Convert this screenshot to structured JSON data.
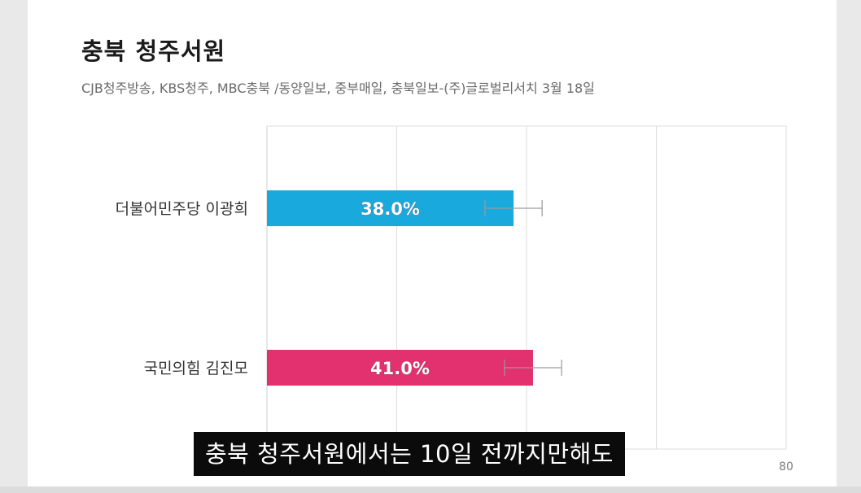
{
  "header": {
    "title": "충북 청주서원",
    "subtitle": "CJB청주방송, KBS청주, MBC충북 /동양일보, 중부매일, 충북일보-(주)글로벌리서치 3월 18일"
  },
  "chart_data": {
    "type": "bar",
    "orientation": "horizontal",
    "categories": [
      "더불어민주당 이광희",
      "국민의힘 김진모"
    ],
    "values": [
      38.0,
      41.0
    ],
    "data_labels": [
      "38.0%",
      "41.0%"
    ],
    "error_margin": 4.4,
    "colors": [
      "#1aa9dd",
      "#e3306e"
    ],
    "xlim": [
      0,
      80
    ],
    "x_ticks": [
      0,
      20,
      40,
      60,
      80
    ],
    "x_tick_labels": [
      "80"
    ],
    "grid": true
  },
  "caption": {
    "text": "충북 청주서원에서는 10일 전까지만해도"
  }
}
